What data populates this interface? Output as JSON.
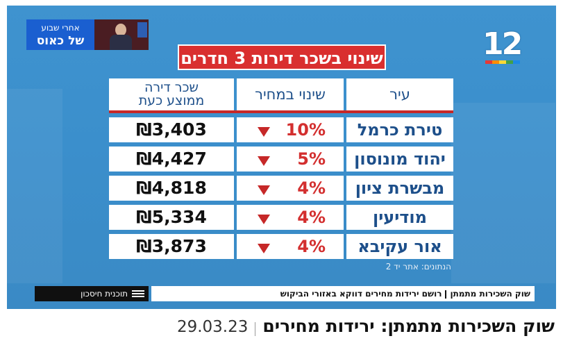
{
  "inset": {
    "line1": "אחרי שבוע",
    "line2": "של כאוס"
  },
  "logo": {
    "number": "12"
  },
  "title": "שינוי בשכר דירות 3 חדרים",
  "table": {
    "headers": {
      "city": "עיר",
      "change": "שינוי במחיר",
      "rent_line1": "שכר דירה",
      "rent_line2": "ממוצע כעת"
    },
    "rows": [
      {
        "city": "טירת כרמל",
        "change": "10%",
        "rent": "₪3,403"
      },
      {
        "city": "יהוד מונוסון",
        "change": "5%",
        "rent": "₪4,427"
      },
      {
        "city": "מבשרת ציון",
        "change": "4%",
        "rent": "₪4,818"
      },
      {
        "city": "מודיעין",
        "change": "4%",
        "rent": "₪5,334"
      },
      {
        "city": "אור עקיבא",
        "change": "4%",
        "rent": "₪3,873"
      }
    ]
  },
  "source": "הנתונים: אתר יד 2",
  "ticker": {
    "program_label": "תוכנית חיסכון",
    "segment": "שוק השכירות מתמתן",
    "text": "רושם ירידות מחירים דווקא באזורי הביקוש"
  },
  "headline": {
    "text": "שוק השכירות מתמתן: ירידות מחירים",
    "date": "29.03.23"
  },
  "colors": {
    "background": "#3b8fcc",
    "title_bg": "#d92f2f",
    "accent_red": "#c62828",
    "header_text": "#1d4f8a"
  }
}
